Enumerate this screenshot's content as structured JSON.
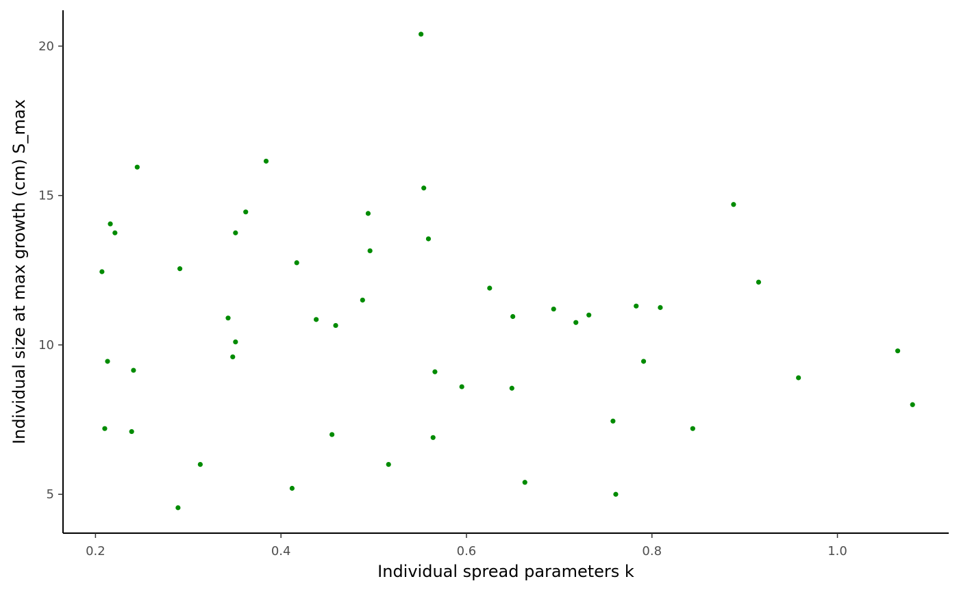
{
  "chart_data": {
    "type": "scatter",
    "title": "",
    "xlabel": "Individual spread parameters k",
    "ylabel": "Individual size at max growth (cm) S_max",
    "xlim": [
      0.165,
      1.12
    ],
    "ylim": [
      3.7,
      21.2
    ],
    "xticks": [
      0.2,
      0.4,
      0.6,
      0.8,
      1.0
    ],
    "xtick_labels": [
      "0.2",
      "0.4",
      "0.6",
      "0.8",
      "1.0"
    ],
    "yticks": [
      5,
      10,
      15,
      20
    ],
    "ytick_labels": [
      "5",
      "10",
      "15",
      "20"
    ],
    "grid": false,
    "legend": "none",
    "point_color": "#008b00",
    "axis_color": "#000000",
    "series": [
      {
        "x": [
          0.551,
          0.245,
          0.384,
          0.554,
          0.216,
          0.362,
          0.494,
          0.221,
          0.351,
          0.559,
          0.496,
          0.207,
          0.291,
          0.417,
          0.488,
          0.343,
          0.438,
          0.459,
          0.351,
          0.213,
          0.348,
          0.241,
          0.566,
          0.21,
          0.239,
          0.313,
          0.412,
          0.289,
          0.455,
          0.516,
          0.564,
          0.595,
          0.625,
          0.65,
          0.649,
          0.663,
          0.694,
          0.718,
          0.732,
          0.758,
          0.761,
          0.783,
          0.791,
          0.809,
          0.844,
          0.888,
          0.915,
          0.958,
          1.065,
          1.081
        ],
        "y": [
          20.4,
          15.95,
          16.15,
          15.25,
          14.05,
          14.45,
          14.4,
          13.75,
          13.75,
          13.55,
          13.15,
          12.45,
          12.55,
          12.75,
          11.5,
          10.9,
          10.85,
          10.65,
          10.1,
          9.45,
          9.6,
          9.15,
          9.1,
          7.2,
          7.1,
          6.0,
          5.2,
          4.55,
          7.0,
          6.0,
          6.9,
          8.6,
          11.9,
          10.95,
          8.55,
          5.4,
          11.2,
          10.75,
          11.0,
          7.45,
          5.0,
          11.3,
          9.45,
          11.25,
          7.2,
          14.7,
          12.1,
          8.9,
          9.8,
          8.0
        ]
      }
    ]
  }
}
